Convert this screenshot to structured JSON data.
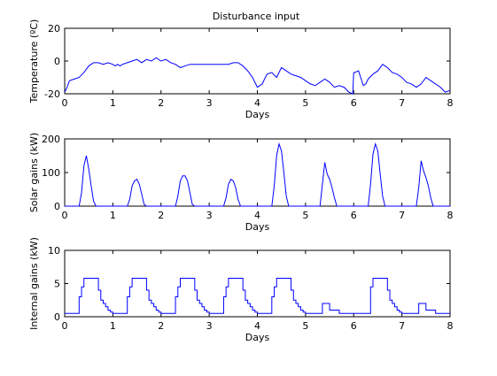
{
  "figure_title": "Disturbance input",
  "line_color": "#0000ff",
  "chart_data": [
    {
      "type": "line",
      "title": "Disturbance input",
      "xlabel": "Days",
      "ylabel": "Temperature (ºC)",
      "xlim": [
        0,
        8
      ],
      "ylim": [
        -20,
        20
      ],
      "xticks": [
        0,
        1,
        2,
        3,
        4,
        5,
        6,
        7,
        8
      ],
      "yticks": [
        -20,
        0,
        20
      ],
      "grid": false,
      "series": [
        {
          "x": [
            0,
            0.05,
            0.1,
            0.2,
            0.3,
            0.4,
            0.5,
            0.55,
            0.6,
            0.65,
            0.7,
            0.8,
            0.9,
            1.0,
            1.05,
            1.1,
            1.15,
            1.2,
            1.3,
            1.4,
            1.5,
            1.6,
            1.7,
            1.8,
            1.9,
            2.0,
            2.1,
            2.2,
            2.3,
            2.4,
            2.5,
            2.6,
            2.8,
            3.0,
            3.2,
            3.4,
            3.5,
            3.6,
            3.7,
            3.8,
            3.9,
            4.0,
            4.1,
            4.2,
            4.3,
            4.4,
            4.5,
            4.6,
            4.7,
            4.8,
            4.9,
            5.0,
            5.1,
            5.2,
            5.3,
            5.4,
            5.5,
            5.6,
            5.7,
            5.8,
            5.9,
            5.98,
            6.0,
            6.02,
            6.1,
            6.2,
            6.25,
            6.3,
            6.4,
            6.5,
            6.6,
            6.7,
            6.8,
            6.9,
            7.0,
            7.1,
            7.2,
            7.3,
            7.4,
            7.5,
            7.6,
            7.7,
            7.8,
            7.9,
            8.0
          ],
          "values": [
            -19,
            -16,
            -12,
            -11,
            -10,
            -7,
            -3,
            -2,
            -1,
            -1,
            -1,
            -2,
            -1,
            -2,
            -3,
            -2,
            -3,
            -2,
            -1,
            0,
            1,
            -1,
            1,
            0,
            2,
            0,
            1,
            -1,
            -2,
            -4,
            -3,
            -2,
            -2,
            -2,
            -2,
            -2,
            -1,
            -1,
            -3,
            -6,
            -10,
            -16,
            -14,
            -8,
            -7,
            -10,
            -4,
            -6,
            -8,
            -9,
            -10,
            -12,
            -14,
            -15,
            -13,
            -11,
            -13,
            -16,
            -15,
            -16,
            -19,
            -20,
            -7,
            -7,
            -6,
            -15,
            -14,
            -11,
            -8,
            -6,
            -2,
            -4,
            -7,
            -8,
            -10,
            -13,
            -14,
            -16,
            -14,
            -10,
            -12,
            -14,
            -16,
            -19,
            -18
          ]
        }
      ]
    },
    {
      "type": "line",
      "xlabel": "Days",
      "ylabel": "Solar gains (kW)",
      "xlim": [
        0,
        8
      ],
      "ylim": [
        0,
        200
      ],
      "xticks": [
        0,
        1,
        2,
        3,
        4,
        5,
        6,
        7,
        8
      ],
      "yticks": [
        0,
        100,
        200
      ],
      "grid": false,
      "series": [
        {
          "x": [
            0,
            0.3,
            0.35,
            0.4,
            0.45,
            0.5,
            0.55,
            0.6,
            0.65,
            0.7,
            1.3,
            1.35,
            1.4,
            1.45,
            1.5,
            1.55,
            1.6,
            1.65,
            1.7,
            2.3,
            2.35,
            2.4,
            2.45,
            2.5,
            2.55,
            2.6,
            2.65,
            2.7,
            3.3,
            3.35,
            3.4,
            3.45,
            3.5,
            3.55,
            3.6,
            3.65,
            3.7,
            4.3,
            4.35,
            4.4,
            4.45,
            4.5,
            4.55,
            4.6,
            4.65,
            4.7,
            5.3,
            5.35,
            5.4,
            5.45,
            5.5,
            5.55,
            5.6,
            5.65,
            5.7,
            6.3,
            6.35,
            6.4,
            6.45,
            6.5,
            6.55,
            6.6,
            6.65,
            6.7,
            7.3,
            7.35,
            7.4,
            7.45,
            7.5,
            7.55,
            7.6,
            7.65,
            7.7,
            8.0
          ],
          "values": [
            0,
            0,
            40,
            120,
            150,
            110,
            60,
            15,
            0,
            0,
            0,
            20,
            60,
            75,
            80,
            65,
            35,
            5,
            0,
            0,
            30,
            75,
            90,
            90,
            75,
            40,
            5,
            0,
            0,
            25,
            65,
            80,
            75,
            55,
            20,
            0,
            0,
            0,
            60,
            150,
            185,
            165,
            100,
            30,
            0,
            0,
            0,
            65,
            130,
            95,
            80,
            55,
            25,
            0,
            0,
            0,
            65,
            155,
            185,
            165,
            95,
            30,
            0,
            0,
            0,
            55,
            135,
            105,
            85,
            60,
            25,
            0,
            0,
            0
          ]
        }
      ]
    },
    {
      "type": "line",
      "xlabel": "Days",
      "ylabel": "Internal gains (kW)",
      "xlim": [
        0,
        8
      ],
      "ylim": [
        0,
        10
      ],
      "xticks": [
        0,
        1,
        2,
        3,
        4,
        5,
        6,
        7,
        8
      ],
      "yticks": [
        0,
        5,
        10
      ],
      "grid": false,
      "step": true,
      "series": [
        {
          "x": [
            0,
            0.3,
            0.35,
            0.4,
            0.7,
            0.75,
            0.8,
            0.85,
            0.9,
            0.95,
            1.0,
            1.3,
            1.35,
            1.4,
            1.7,
            1.75,
            1.8,
            1.85,
            1.9,
            1.95,
            2.0,
            2.3,
            2.35,
            2.4,
            2.7,
            2.75,
            2.8,
            2.85,
            2.9,
            2.95,
            3.0,
            3.3,
            3.35,
            3.4,
            3.7,
            3.75,
            3.8,
            3.85,
            3.9,
            3.95,
            4.0,
            4.3,
            4.35,
            4.4,
            4.7,
            4.75,
            4.8,
            4.85,
            4.9,
            4.95,
            5.0,
            5.35,
            5.5,
            5.6,
            5.7,
            6.0,
            6.35,
            6.4,
            6.7,
            6.75,
            6.8,
            6.85,
            6.9,
            6.95,
            7.0,
            7.35,
            7.5,
            7.6,
            7.7,
            8.0
          ],
          "values": [
            0.5,
            3,
            4.5,
            5.8,
            4,
            2.5,
            2,
            1.5,
            1,
            0.7,
            0.5,
            3,
            4.5,
            5.8,
            4,
            2.5,
            2,
            1.5,
            1,
            0.7,
            0.5,
            3,
            4.5,
            5.8,
            4,
            2.5,
            2,
            1.5,
            1,
            0.7,
            0.5,
            3,
            4.5,
            5.8,
            4,
            2.5,
            2,
            1.5,
            1,
            0.7,
            0.5,
            3,
            4.5,
            5.8,
            4,
            2.5,
            2,
            1.5,
            1,
            0.7,
            0.5,
            2,
            1,
            1,
            0.5,
            0.5,
            4.5,
            5.8,
            4,
            2.5,
            2,
            1.5,
            1,
            0.7,
            0.5,
            2,
            1,
            1,
            0.5,
            0.5
          ]
        }
      ]
    }
  ]
}
